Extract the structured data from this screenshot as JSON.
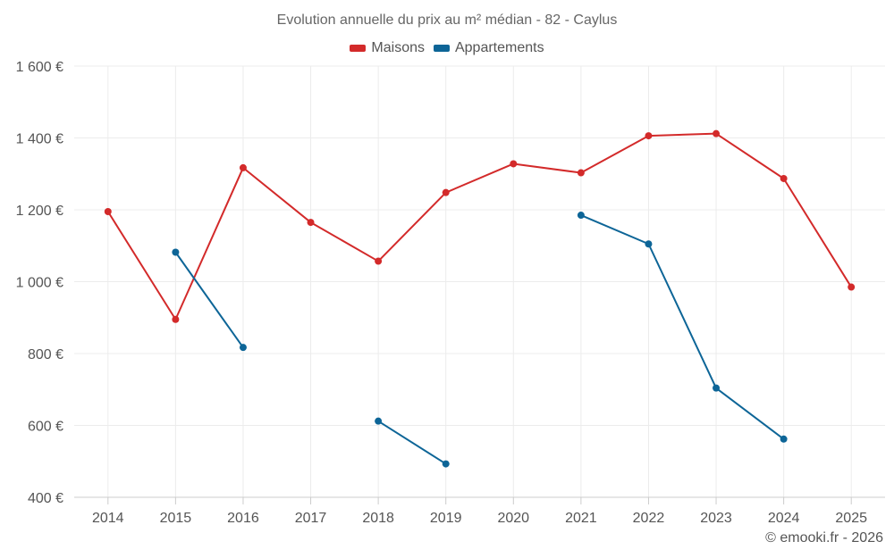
{
  "chart_data": {
    "type": "line",
    "title": "Evolution annuelle du prix au m² médian - 82 - Caylus",
    "categories": [
      "2014",
      "2015",
      "2016",
      "2017",
      "2018",
      "2019",
      "2020",
      "2021",
      "2022",
      "2023",
      "2024",
      "2025"
    ],
    "y_tick_values": [
      400,
      600,
      800,
      1000,
      1200,
      1400,
      1600
    ],
    "y_tick_labels": [
      "400 €",
      "600 €",
      "800 €",
      "1 000 €",
      "1 200 €",
      "1 400 €",
      "1 600 €"
    ],
    "ylim": [
      400,
      1600
    ],
    "grid": true,
    "legend_position": "top-center",
    "series": [
      {
        "name": "Maisons",
        "color": "#d32a2a",
        "values": [
          1195,
          895,
          1317,
          1165,
          1057,
          1248,
          1328,
          1303,
          1406,
          1412,
          1287,
          985
        ]
      },
      {
        "name": "Appartements",
        "color": "#0d6597",
        "values": [
          null,
          1082,
          817,
          null,
          612,
          493,
          null,
          1185,
          1105,
          704,
          562,
          null
        ]
      }
    ]
  },
  "credit": "© emooki.fr - 2026"
}
